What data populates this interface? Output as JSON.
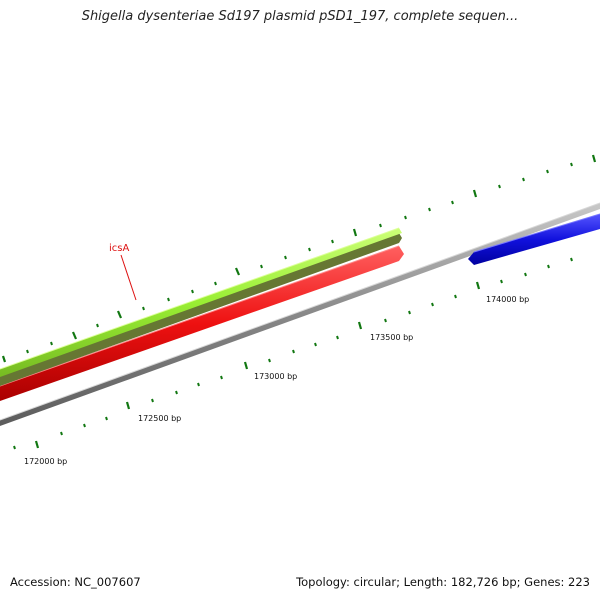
{
  "title": "Shigella dysenteriae Sd197 plasmid pSD1_197, complete sequen...",
  "footer": {
    "accession": "Accession: NC_007607",
    "summary": "Topology: circular; Length: 182,726 bp; Genes: 223"
  },
  "colors": {
    "backbone": "#808080",
    "gene_green": "#99ee33",
    "gene_olive": "#667733",
    "gene_red": "#ee1111",
    "gene_blue": "#1111dd",
    "tick": "#117711",
    "label_red": "#dd1111"
  },
  "gene_label": "icsA",
  "position_labels": [
    "172000 bp",
    "172500 bp",
    "173000 bp",
    "173500 bp",
    "174000 bp"
  ]
}
